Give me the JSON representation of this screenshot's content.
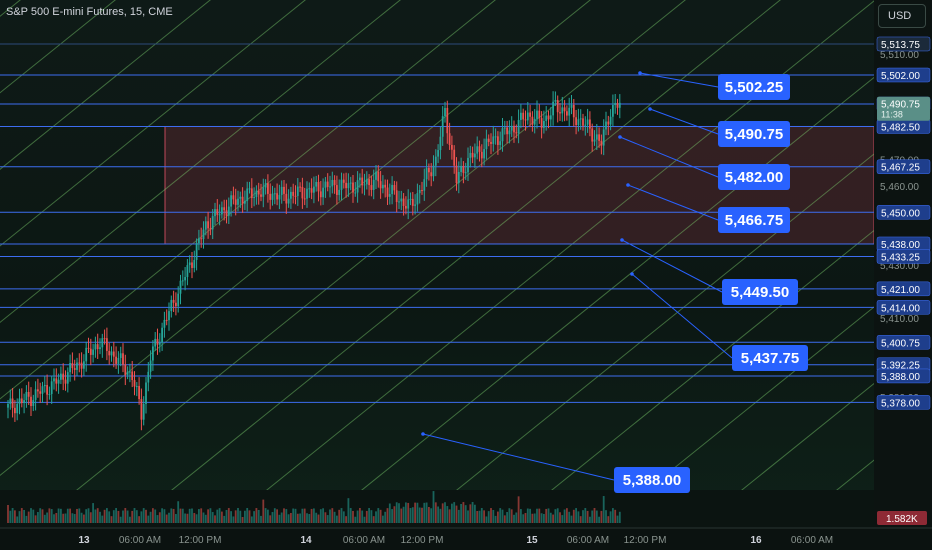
{
  "header": {
    "symbol": "S&P 500 E-mini Futures, 15, CME",
    "currency_button": "USD"
  },
  "price_axis": {
    "ticks": [
      "5,510.00",
      "5,470.00",
      "5,460.00",
      "5,430.00",
      "5,410.00",
      "5,380.00"
    ],
    "level_tags": [
      {
        "text": "5,513.75",
        "value": 5513.75,
        "style": "faint"
      },
      {
        "text": "5,502.00",
        "value": 5502.0,
        "style": "blue"
      },
      {
        "text": "5,491.00",
        "value": 5491.0,
        "style": "blue"
      },
      {
        "text": "5,482.50",
        "value": 5482.5,
        "style": "blue"
      },
      {
        "text": "5,467.25",
        "value": 5467.25,
        "style": "blue"
      },
      {
        "text": "5,450.00",
        "value": 5450.0,
        "style": "blue"
      },
      {
        "text": "5,438.00",
        "value": 5438.0,
        "style": "blue"
      },
      {
        "text": "5,433.25",
        "value": 5433.25,
        "style": "blue"
      },
      {
        "text": "5,421.00",
        "value": 5421.0,
        "style": "blue"
      },
      {
        "text": "5,414.00",
        "value": 5414.0,
        "style": "blue"
      },
      {
        "text": "5,400.75",
        "value": 5400.75,
        "style": "blue"
      },
      {
        "text": "5,392.25",
        "value": 5392.25,
        "style": "blue"
      },
      {
        "text": "5,388.00",
        "value": 5388.0,
        "style": "blue"
      },
      {
        "text": "5,378.00",
        "value": 5378.0,
        "style": "blue"
      }
    ],
    "current_price": {
      "text": "5,490.75",
      "countdown": "11:38",
      "value": 5490.75
    },
    "volume_tag": "1.582K"
  },
  "time_axis": {
    "labels": [
      "13",
      "06:00 AM",
      "12:00 PM",
      "14",
      "06:00 AM",
      "12:00 PM",
      "15",
      "06:00 AM",
      "12:00 PM",
      "16",
      "06:00 AM"
    ]
  },
  "callouts": [
    {
      "text": "5,502.25",
      "value": 5502.25
    },
    {
      "text": "5,490.75",
      "value": 5490.75
    },
    {
      "text": "5,482.00",
      "value": 5482.0
    },
    {
      "text": "5,466.75",
      "value": 5466.75
    },
    {
      "text": "5,449.50",
      "value": 5449.5
    },
    {
      "text": "5,437.75",
      "value": 5437.75
    },
    {
      "text": "5,388.00",
      "value": 5388.0
    }
  ],
  "colors": {
    "up": "#26a69a",
    "down": "#ef5350",
    "level": "#3d6df0",
    "callout": "#2962ff",
    "zone": "#7a2f3c",
    "channel": "#7fd36e",
    "price_tag": "#5a8f87"
  },
  "chart_data": {
    "type": "candlestick",
    "title": "S&P 500 E-mini Futures, 15, CME",
    "timeframe": "15",
    "ylim": [
      5374,
      5519
    ],
    "x_session_labels": [
      "13",
      "14",
      "15",
      "16"
    ],
    "horizontal_levels": [
      5513.75,
      5502.0,
      5491.0,
      5482.5,
      5467.25,
      5450.0,
      5438.0,
      5433.25,
      5421.0,
      5414.0,
      5400.75,
      5392.25,
      5388.0,
      5378.0
    ],
    "zone": {
      "high": 5482.5,
      "low": 5438.0
    },
    "close_path": [
      [
        0,
        5376
      ],
      [
        10,
        5380
      ],
      [
        20,
        5385
      ],
      [
        30,
        5392
      ],
      [
        40,
        5401
      ],
      [
        48,
        5394
      ],
      [
        54,
        5388
      ],
      [
        58,
        5374
      ],
      [
        62,
        5395
      ],
      [
        68,
        5408
      ],
      [
        74,
        5420
      ],
      [
        80,
        5432
      ],
      [
        86,
        5445
      ],
      [
        92,
        5450
      ],
      [
        100,
        5455
      ],
      [
        110,
        5458
      ],
      [
        120,
        5456
      ],
      [
        130,
        5458
      ],
      [
        140,
        5460
      ],
      [
        150,
        5460
      ],
      [
        160,
        5462
      ],
      [
        170,
        5455
      ],
      [
        175,
        5452
      ],
      [
        180,
        5460
      ],
      [
        186,
        5470
      ],
      [
        190,
        5488
      ],
      [
        195,
        5462
      ],
      [
        200,
        5470
      ],
      [
        206,
        5474
      ],
      [
        212,
        5478
      ],
      [
        220,
        5482
      ],
      [
        226,
        5487
      ],
      [
        232,
        5484
      ],
      [
        238,
        5490
      ],
      [
        244,
        5488
      ],
      [
        250,
        5484
      ],
      [
        254,
        5480
      ],
      [
        258,
        5476
      ],
      [
        262,
        5489
      ],
      [
        266,
        5490.75
      ]
    ],
    "volume_label": "1.582K"
  }
}
